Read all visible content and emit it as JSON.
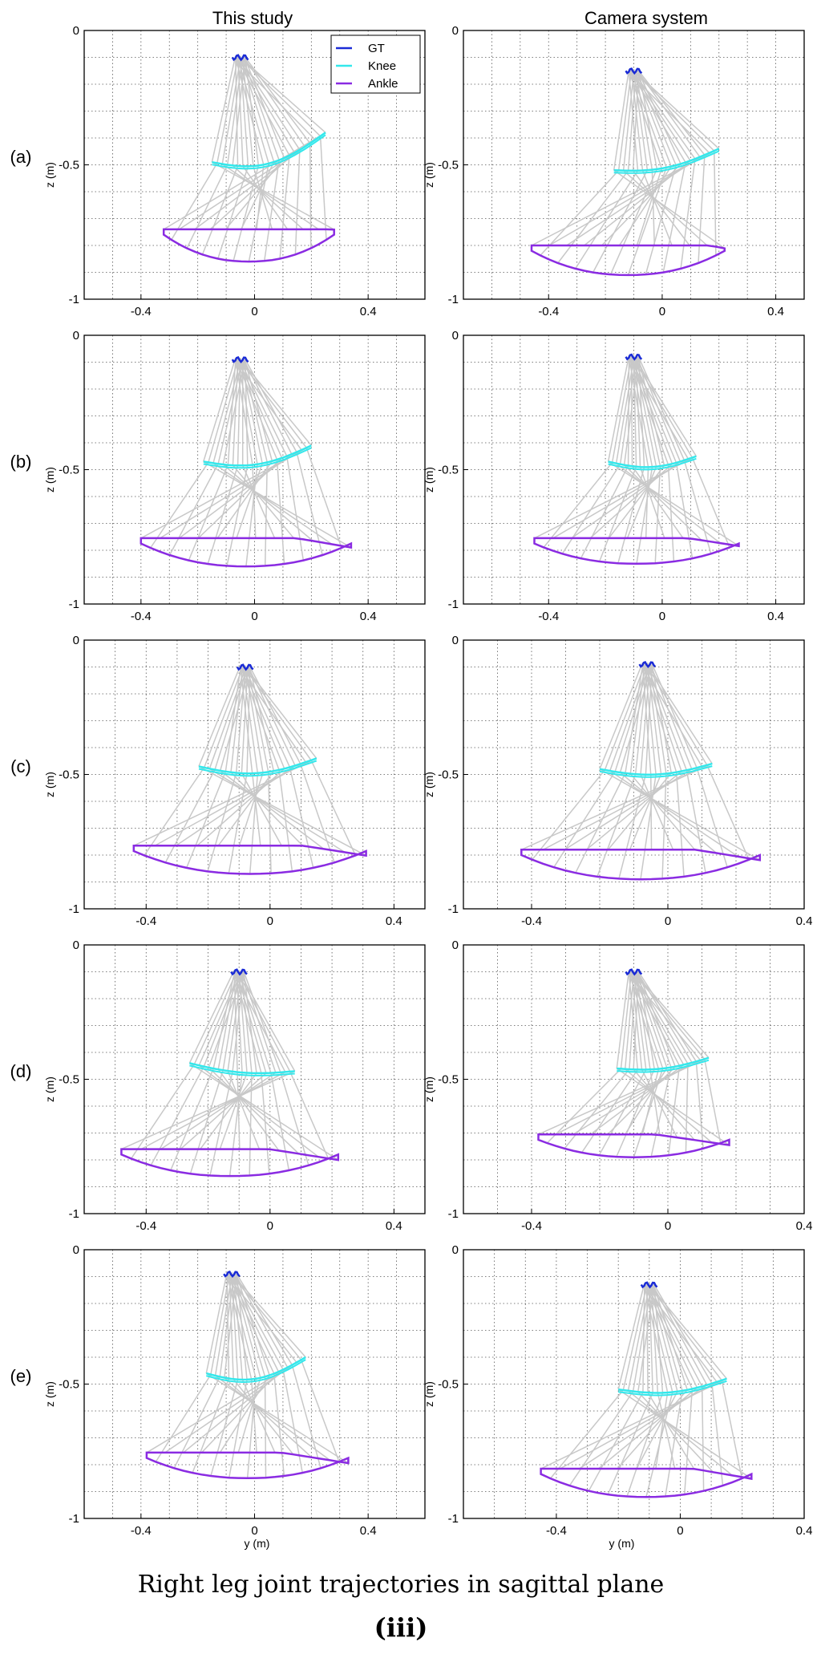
{
  "figure": {
    "column_titles": [
      "This study",
      "Camera system"
    ],
    "caption": "Right leg joint trajectories in sagittal plane",
    "caption_sub": "iii",
    "caption_sub_full": "(iii)"
  },
  "chart_data": {
    "type": "line",
    "xlabel": "y (m)",
    "ylabel": "z (m)",
    "y_ticks": [
      "0",
      "-0.5",
      "-1"
    ],
    "x_ticks": [
      "-0.4",
      "0",
      "0.4"
    ],
    "ylim": [
      -1,
      0
    ],
    "grid": true,
    "legend": {
      "placement": "top-right",
      "entries": [
        "GT",
        "Knee",
        "Ankle"
      ]
    },
    "colors": {
      "GT": "#1a2bd6",
      "Knee": "#33e8ec",
      "Ankle": "#8a2be2",
      "links": "#c8c8c8"
    },
    "panels": [
      {
        "row": "(a)",
        "column": "This study",
        "xlim": [
          -0.6,
          0.6
        ],
        "gt": {
          "y": -0.05,
          "z": -0.1
        },
        "knee": {
          "y_start": -0.15,
          "z_start": -0.49,
          "y_end": 0.25,
          "z_end": -0.38,
          "sag": 0.06
        },
        "ankle": {
          "y_left": -0.32,
          "y_right": 0.28,
          "z_top": -0.66,
          "z_bottom": -0.86,
          "peak": -0.1
        }
      },
      {
        "row": "(a)",
        "column": "Camera system",
        "xlim": [
          -0.7,
          0.5
        ],
        "gt": {
          "y": -0.1,
          "z": -0.15
        },
        "knee": {
          "y_start": -0.17,
          "z_start": -0.52,
          "y_end": 0.2,
          "z_end": -0.44,
          "sag": 0.03
        },
        "ankle": {
          "y_left": -0.46,
          "y_right": 0.22,
          "z_top": -0.73,
          "z_bottom": -0.91,
          "peak": -0.25
        }
      },
      {
        "row": "(b)",
        "column": "This study",
        "xlim": [
          -0.6,
          0.6
        ],
        "gt": {
          "y": -0.05,
          "z": -0.09
        },
        "knee": {
          "y_start": -0.18,
          "z_start": -0.47,
          "y_end": 0.2,
          "z_end": -0.41,
          "sag": 0.04
        },
        "ankle": {
          "y_left": -0.4,
          "y_right": 0.34,
          "z_top": -0.69,
          "z_bottom": -0.86,
          "peak": -0.3
        }
      },
      {
        "row": "(b)",
        "column": "Camera system",
        "xlim": [
          -0.7,
          0.5
        ],
        "gt": {
          "y": -0.1,
          "z": -0.08
        },
        "knee": {
          "y_start": -0.19,
          "z_start": -0.47,
          "y_end": 0.12,
          "z_end": -0.45,
          "sag": 0.03
        },
        "ankle": {
          "y_left": -0.45,
          "y_right": 0.27,
          "z_top": -0.7,
          "z_bottom": -0.85,
          "peak": -0.33
        }
      },
      {
        "row": "(c)",
        "column": "This study",
        "xlim": [
          -0.6,
          0.5
        ],
        "gt": {
          "y": -0.08,
          "z": -0.1
        },
        "knee": {
          "y_start": -0.23,
          "z_start": -0.47,
          "y_end": 0.15,
          "z_end": -0.44,
          "sag": 0.04
        },
        "ankle": {
          "y_left": -0.44,
          "y_right": 0.31,
          "z_top": -0.7,
          "z_bottom": -0.87,
          "peak": -0.35
        }
      },
      {
        "row": "(c)",
        "column": "Camera system",
        "xlim": [
          -0.6,
          0.4
        ],
        "gt": {
          "y": -0.06,
          "z": -0.09
        },
        "knee": {
          "y_start": -0.2,
          "z_start": -0.48,
          "y_end": 0.13,
          "z_end": -0.46,
          "sag": 0.03
        },
        "ankle": {
          "y_left": -0.43,
          "y_right": 0.27,
          "z_top": -0.71,
          "z_bottom": -0.89,
          "peak": -0.35
        }
      },
      {
        "row": "(d)",
        "column": "This study",
        "xlim": [
          -0.6,
          0.5
        ],
        "gt": {
          "y": -0.1,
          "z": -0.1
        },
        "knee": {
          "y_start": -0.26,
          "z_start": -0.44,
          "y_end": 0.08,
          "z_end": -0.47,
          "sag": 0.02
        },
        "ankle": {
          "y_left": -0.48,
          "y_right": 0.22,
          "z_top": -0.7,
          "z_bottom": -0.86,
          "peak": -0.42
        }
      },
      {
        "row": "(d)",
        "column": "Camera system",
        "xlim": [
          -0.6,
          0.4
        ],
        "gt": {
          "y": -0.1,
          "z": -0.1
        },
        "knee": {
          "y_start": -0.15,
          "z_start": -0.46,
          "y_end": 0.12,
          "z_end": -0.42,
          "sag": 0.02
        },
        "ankle": {
          "y_left": -0.38,
          "y_right": 0.18,
          "z_top": -0.66,
          "z_bottom": -0.79,
          "peak": -0.35
        }
      },
      {
        "row": "(e)",
        "column": "This study",
        "xlim": [
          -0.6,
          0.6
        ],
        "gt": {
          "y": -0.08,
          "z": -0.09
        },
        "knee": {
          "y_start": -0.17,
          "z_start": -0.46,
          "y_end": 0.18,
          "z_end": -0.4,
          "sag": 0.05
        },
        "ankle": {
          "y_left": -0.38,
          "y_right": 0.33,
          "z_top": -0.7,
          "z_bottom": -0.85,
          "peak": -0.32
        }
      },
      {
        "row": "(e)",
        "column": "Camera system",
        "xlim": [
          -0.7,
          0.4
        ],
        "gt": {
          "y": -0.1,
          "z": -0.13
        },
        "knee": {
          "y_start": -0.2,
          "z_start": -0.52,
          "y_end": 0.15,
          "z_end": -0.48,
          "sag": 0.03
        },
        "ankle": {
          "y_left": -0.45,
          "y_right": 0.23,
          "z_top": -0.75,
          "z_bottom": -0.92,
          "peak": -0.37
        }
      }
    ]
  }
}
